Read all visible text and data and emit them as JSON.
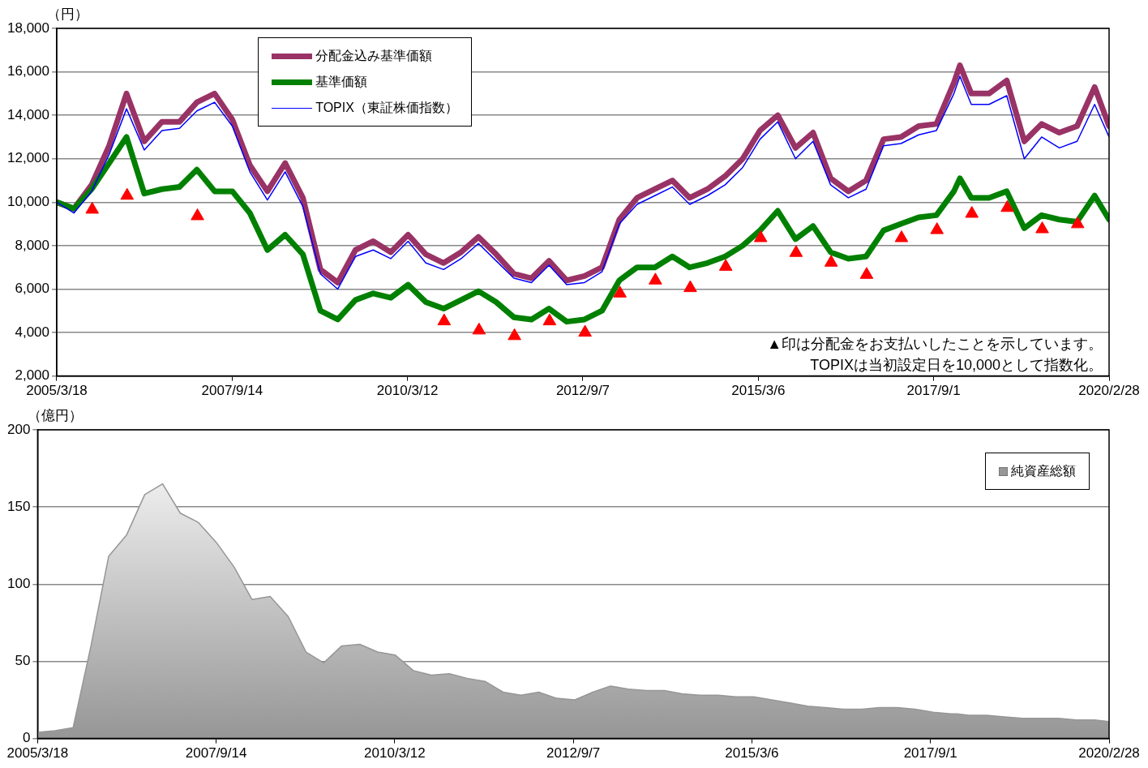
{
  "chart_data": [
    {
      "type": "line",
      "ylabel": "（円）",
      "legend": "top",
      "grid": "y",
      "marker": "none",
      "xlim": [
        "2005-03-18",
        "2020-02-28"
      ],
      "xticks": [
        {
          "value": "2005-03-18",
          "label": "2005/3/18"
        },
        {
          "value": "2007-09-14",
          "label": "2007/9/14"
        },
        {
          "value": "2010-03-12",
          "label": "2010/3/12"
        },
        {
          "value": "2012-09-07",
          "label": "2012/9/7"
        },
        {
          "value": "2015-03-06",
          "label": "2015/3/6"
        },
        {
          "value": "2017-09-01",
          "label": "2017/9/1"
        },
        {
          "value": "2020-02-28",
          "label": "2020/2/28"
        }
      ],
      "ylim": [
        2000,
        18000
      ],
      "yticks": [
        {
          "value": 2000,
          "label": "2,000"
        },
        {
          "value": 4000,
          "label": "4,000"
        },
        {
          "value": 6000,
          "label": "6,000"
        },
        {
          "value": 8000,
          "label": "8,000"
        },
        {
          "value": 10000,
          "label": "10,000"
        },
        {
          "value": 12000,
          "label": "12,000"
        },
        {
          "value": 14000,
          "label": "14,000"
        },
        {
          "value": 16000,
          "label": "16,000"
        },
        {
          "value": 18000,
          "label": "18,000"
        }
      ],
      "annotations": [
        "▲印は分配金をお支払いしたことを示しています。",
        "TOPIXは当初設定日を10,000として指数化。"
      ],
      "x": [
        "2005-03-18",
        "2005-06-15",
        "2005-09-15",
        "2005-12-15",
        "2006-03-15",
        "2006-06-15",
        "2006-09-15",
        "2006-12-15",
        "2007-03-15",
        "2007-06-15",
        "2007-09-15",
        "2007-12-15",
        "2008-03-15",
        "2008-06-15",
        "2008-09-15",
        "2008-12-15",
        "2009-03-15",
        "2009-06-15",
        "2009-09-15",
        "2009-12-15",
        "2010-03-15",
        "2010-06-15",
        "2010-09-15",
        "2010-12-15",
        "2011-03-15",
        "2011-06-15",
        "2011-09-15",
        "2011-12-15",
        "2012-03-15",
        "2012-06-15",
        "2012-09-15",
        "2012-12-15",
        "2013-03-15",
        "2013-06-15",
        "2013-09-15",
        "2013-12-15",
        "2014-03-15",
        "2014-06-15",
        "2014-09-15",
        "2014-12-15",
        "2015-03-15",
        "2015-06-15",
        "2015-09-15",
        "2015-12-15",
        "2016-03-15",
        "2016-06-15",
        "2016-09-15",
        "2016-12-15",
        "2017-03-15",
        "2017-06-15",
        "2017-09-15",
        "2017-12-15",
        "2018-01-15",
        "2018-03-15",
        "2018-06-15",
        "2018-09-15",
        "2018-12-15",
        "2019-03-15",
        "2019-06-15",
        "2019-09-15",
        "2019-12-15",
        "2020-02-28"
      ],
      "series": [
        {
          "name": "分配金込み基準価額",
          "color": "#993366",
          "values": [
            10000,
            9700,
            10800,
            12600,
            15000,
            12800,
            13700,
            13700,
            14600,
            15000,
            13800,
            11700,
            10500,
            11800,
            10200,
            6900,
            6300,
            7800,
            8200,
            7700,
            8500,
            7600,
            7200,
            7700,
            8400,
            7600,
            6700,
            6500,
            7300,
            6400,
            6600,
            7000,
            9200,
            10200,
            10600,
            11000,
            10200,
            10600,
            11200,
            12000,
            13300,
            14000,
            12500,
            13200,
            11100,
            10500,
            11000,
            12900,
            13000,
            13500,
            13600,
            15500,
            16300,
            15000,
            15000,
            15600,
            12800,
            13600,
            13200,
            13500,
            15300,
            13500
          ]
        },
        {
          "name": "基準価額",
          "color": "#008000",
          "values": [
            10000,
            9700,
            10600,
            11800,
            13000,
            10400,
            10600,
            10700,
            11500,
            10500,
            10500,
            9500,
            7800,
            8500,
            7600,
            5000,
            4600,
            5500,
            5800,
            5600,
            6200,
            5400,
            5100,
            5500,
            5900,
            5400,
            4700,
            4600,
            5100,
            4500,
            4600,
            5000,
            6400,
            7000,
            7000,
            7500,
            7000,
            7200,
            7500,
            8000,
            8700,
            9600,
            8300,
            8900,
            7700,
            7400,
            7500,
            8700,
            9000,
            9300,
            9400,
            10500,
            11100,
            10200,
            10200,
            10500,
            8800,
            9400,
            9200,
            9100,
            10300,
            9200
          ]
        },
        {
          "name": "TOPIX（東証株価指数）",
          "color": "#0000ff",
          "values": [
            10000,
            9500,
            10500,
            12200,
            14300,
            12400,
            13300,
            13400,
            14200,
            14600,
            13500,
            11400,
            10100,
            11400,
            9800,
            6700,
            6000,
            7500,
            7800,
            7400,
            8200,
            7200,
            6900,
            7400,
            8100,
            7300,
            6500,
            6300,
            7100,
            6200,
            6300,
            6800,
            9000,
            9900,
            10300,
            10700,
            9900,
            10300,
            10800,
            11600,
            12900,
            13700,
            12000,
            12800,
            10800,
            10200,
            10600,
            12600,
            12700,
            13100,
            13300,
            15000,
            15800,
            14500,
            14500,
            14900,
            12000,
            13000,
            12500,
            12800,
            14500,
            13000
          ]
        },
        {
          "type": "scatter",
          "color": "#ff0000",
          "marker": "triangle",
          "x": [
            "2005-09-18",
            "2006-03-18",
            "2007-03-18",
            "2010-09-18",
            "2011-03-18",
            "2011-09-18",
            "2012-03-18",
            "2012-09-18",
            "2013-03-18",
            "2013-09-18",
            "2014-03-18",
            "2014-09-18",
            "2015-03-18",
            "2015-09-18",
            "2016-03-18",
            "2016-09-18",
            "2017-03-18",
            "2017-09-18",
            "2018-03-18",
            "2018-09-18",
            "2019-03-18",
            "2019-09-18"
          ],
          "values": [
            9660,
            10300,
            9360,
            4520,
            4100,
            3840,
            4520,
            4000,
            5800,
            6400,
            6050,
            7030,
            8350,
            7670,
            7220,
            6660,
            8350,
            8720,
            9470,
            9740,
            8760,
            8990
          ]
        }
      ]
    },
    {
      "type": "area",
      "ylabel": "（億円）",
      "legend": "top right",
      "grid": "y",
      "marker": "none",
      "xlim": [
        "2005-03-18",
        "2020-02-28"
      ],
      "xticks": [
        {
          "value": "2005-03-18",
          "label": "2005/3/18"
        },
        {
          "value": "2007-09-14",
          "label": "2007/9/14"
        },
        {
          "value": "2010-03-12",
          "label": "2010/3/12"
        },
        {
          "value": "2012-09-07",
          "label": "2012/9/7"
        },
        {
          "value": "2015-03-06",
          "label": "2015/3/6"
        },
        {
          "value": "2017-09-01",
          "label": "2017/9/1"
        },
        {
          "value": "2020-02-28",
          "label": "2020/2/28"
        }
      ],
      "ylim": [
        0,
        200
      ],
      "yticks": [
        0,
        50,
        100,
        150,
        200
      ],
      "x": [
        "2005-03-18",
        "2005-06-15",
        "2005-09-15",
        "2005-12-15",
        "2006-03-15",
        "2006-06-15",
        "2006-09-15",
        "2006-12-15",
        "2007-03-15",
        "2007-06-15",
        "2007-09-15",
        "2007-12-15",
        "2008-03-15",
        "2008-06-15",
        "2008-09-15",
        "2008-12-15",
        "2009-03-15",
        "2009-06-15",
        "2009-09-15",
        "2009-12-15",
        "2010-03-15",
        "2010-06-15",
        "2010-09-15",
        "2010-12-15",
        "2011-03-15",
        "2011-06-15",
        "2011-09-15",
        "2011-12-15",
        "2012-03-15",
        "2012-06-15",
        "2012-09-15",
        "2012-12-15",
        "2013-03-15",
        "2013-06-15",
        "2013-09-15",
        "2013-12-15",
        "2014-03-15",
        "2014-06-15",
        "2014-09-15",
        "2014-12-15",
        "2015-03-15",
        "2015-06-15",
        "2015-09-15",
        "2015-12-15",
        "2016-03-15",
        "2016-06-15",
        "2016-09-15",
        "2016-12-15",
        "2017-03-15",
        "2017-06-15",
        "2017-09-15",
        "2017-12-15",
        "2018-01-15",
        "2018-03-15",
        "2018-06-15",
        "2018-09-15",
        "2018-12-15",
        "2019-03-15",
        "2019-06-15",
        "2019-09-15",
        "2019-12-15",
        "2020-02-28"
      ],
      "series": [
        {
          "name": "純資産総額",
          "color": "#969696",
          "values": [
            4,
            5,
            7,
            60,
            118,
            132,
            158,
            165,
            146,
            140,
            127,
            111,
            90,
            92,
            79,
            56,
            49,
            60,
            61,
            56,
            54,
            44,
            41,
            42,
            39,
            37,
            30,
            28,
            30,
            26,
            25,
            30,
            34,
            32,
            31,
            31,
            29,
            28,
            28,
            27,
            27,
            25,
            23,
            21,
            20,
            19,
            19,
            20,
            20,
            19,
            17,
            16,
            16,
            15,
            15,
            14,
            13,
            13,
            13,
            12,
            12,
            11
          ]
        }
      ]
    }
  ]
}
